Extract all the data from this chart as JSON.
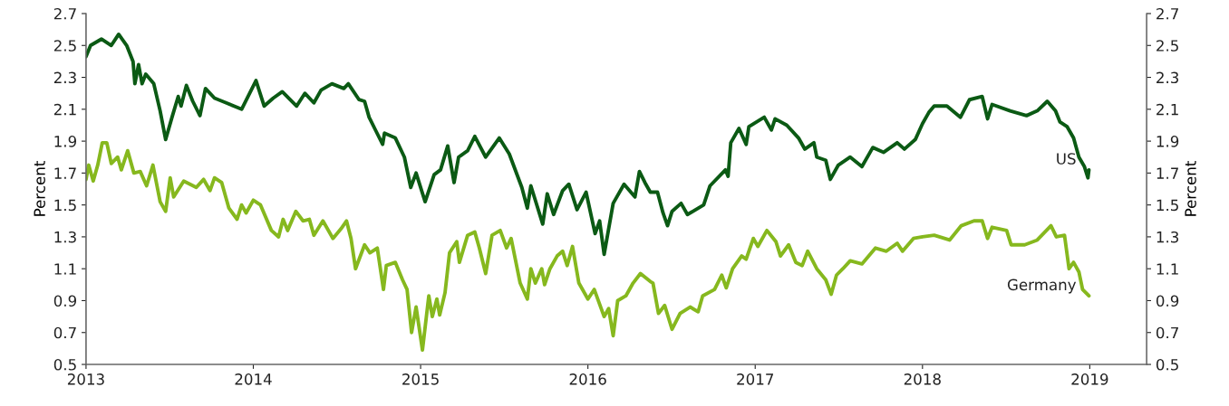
{
  "chart_data": {
    "type": "line",
    "ylabel": "Percent",
    "y2label": "Percent",
    "xlim": [
      2013,
      2019.34
    ],
    "xticks": [
      2013,
      2014,
      2015,
      2016,
      2017,
      2018,
      2019
    ],
    "ylim": [
      0.5,
      2.7
    ],
    "yticks": [
      0.5,
      0.7,
      0.9,
      1.1,
      1.3,
      1.5,
      1.7,
      1.9,
      2.1,
      2.3,
      2.5,
      2.7
    ],
    "y2lim": [
      0.5,
      2.7
    ],
    "y2ticks": [
      0.5,
      0.7,
      0.9,
      1.1,
      1.3,
      1.5,
      1.7,
      1.9,
      2.1,
      2.3,
      2.5,
      2.7
    ],
    "grid": false,
    "line_style": "solid",
    "marker": "none",
    "series": [
      {
        "name": "US",
        "color": "#0b5a14",
        "x": [
          2013.0,
          2013.027,
          2013.092,
          2013.151,
          2013.195,
          2013.243,
          2013.281,
          2013.292,
          2013.314,
          2013.335,
          2013.357,
          2013.405,
          2013.443,
          2013.476,
          2013.514,
          2013.551,
          2013.568,
          2013.6,
          2013.638,
          2013.681,
          2013.714,
          2013.768,
          2013.838,
          2013.93,
          2014.016,
          2014.065,
          2014.119,
          2014.173,
          2014.259,
          2014.308,
          2014.362,
          2014.405,
          2014.47,
          2014.541,
          2014.568,
          2014.632,
          2014.665,
          2014.692,
          2014.73,
          2014.773,
          2014.784,
          2014.849,
          2014.903,
          2014.941,
          2014.973,
          2015.027,
          2015.081,
          2015.119,
          2015.162,
          2015.2,
          2015.227,
          2015.281,
          2015.324,
          2015.389,
          2015.47,
          2015.53,
          2015.605,
          2015.638,
          2015.659,
          2015.73,
          2015.757,
          2015.795,
          2015.849,
          2015.886,
          2015.935,
          2015.989,
          2016.043,
          2016.07,
          2016.097,
          2016.151,
          2016.216,
          2016.281,
          2016.308,
          2016.341,
          2016.373,
          2016.416,
          2016.449,
          2016.476,
          2016.503,
          2016.557,
          2016.595,
          2016.692,
          2016.73,
          2016.822,
          2016.838,
          2016.854,
          2016.903,
          2016.946,
          2016.962,
          2017.054,
          2017.097,
          2017.119,
          2017.189,
          2017.259,
          2017.297,
          2017.351,
          2017.368,
          2017.422,
          2017.449,
          2017.497,
          2017.568,
          2017.638,
          2017.703,
          2017.768,
          2017.849,
          2017.892,
          2017.957,
          2018.0,
          2018.038,
          2018.07,
          2018.146,
          2018.227,
          2018.281,
          2018.357,
          2018.389,
          2018.416,
          2018.524,
          2018.622,
          2018.686,
          2018.746,
          2018.795,
          2018.822,
          2018.865,
          2018.903,
          2018.935,
          2018.968,
          2018.989,
          2018.995
        ],
        "values": [
          2.43,
          2.5,
          2.54,
          2.5,
          2.57,
          2.5,
          2.4,
          2.26,
          2.38,
          2.26,
          2.32,
          2.26,
          2.09,
          1.91,
          2.05,
          2.18,
          2.12,
          2.25,
          2.15,
          2.06,
          2.23,
          2.17,
          2.14,
          2.1,
          2.28,
          2.12,
          2.17,
          2.21,
          2.12,
          2.2,
          2.14,
          2.22,
          2.26,
          2.23,
          2.26,
          2.16,
          2.15,
          2.05,
          1.97,
          1.88,
          1.95,
          1.92,
          1.8,
          1.61,
          1.7,
          1.52,
          1.69,
          1.72,
          1.87,
          1.64,
          1.8,
          1.84,
          1.93,
          1.8,
          1.92,
          1.82,
          1.61,
          1.48,
          1.62,
          1.38,
          1.57,
          1.44,
          1.59,
          1.63,
          1.47,
          1.58,
          1.32,
          1.4,
          1.19,
          1.51,
          1.63,
          1.55,
          1.71,
          1.64,
          1.58,
          1.58,
          1.45,
          1.37,
          1.46,
          1.51,
          1.44,
          1.5,
          1.62,
          1.72,
          1.68,
          1.89,
          1.98,
          1.88,
          1.99,
          2.05,
          1.97,
          2.04,
          2.0,
          1.92,
          1.85,
          1.89,
          1.8,
          1.78,
          1.66,
          1.75,
          1.8,
          1.74,
          1.86,
          1.83,
          1.89,
          1.85,
          1.91,
          2.01,
          2.08,
          2.12,
          2.12,
          2.05,
          2.16,
          2.18,
          2.04,
          2.13,
          2.09,
          2.06,
          2.09,
          2.15,
          2.09,
          2.02,
          1.99,
          1.92,
          1.8,
          1.74,
          1.67,
          1.72
        ]
      },
      {
        "name": "Germany",
        "color": "#86b81e",
        "x": [
          2013.0,
          2013.016,
          2013.043,
          2013.07,
          2013.097,
          2013.124,
          2013.151,
          2013.189,
          2013.211,
          2013.249,
          2013.286,
          2013.324,
          2013.362,
          2013.4,
          2013.443,
          2013.476,
          2013.503,
          2013.524,
          2013.584,
          2013.659,
          2013.703,
          2013.741,
          2013.768,
          2013.811,
          2013.854,
          2013.903,
          2013.93,
          2013.957,
          2014.0,
          2014.043,
          2014.108,
          2014.151,
          2014.178,
          2014.205,
          2014.254,
          2014.297,
          2014.335,
          2014.362,
          2014.416,
          2014.476,
          2014.524,
          2014.557,
          2014.584,
          2014.611,
          2014.665,
          2014.697,
          2014.741,
          2014.778,
          2014.795,
          2014.849,
          2014.892,
          2014.919,
          2014.946,
          2014.973,
          2015.011,
          2015.049,
          2015.07,
          2015.097,
          2015.114,
          2015.146,
          2015.173,
          2015.216,
          2015.232,
          2015.281,
          2015.324,
          2015.351,
          2015.389,
          2015.427,
          2015.476,
          2015.514,
          2015.541,
          2015.595,
          2015.638,
          2015.659,
          2015.686,
          2015.724,
          2015.741,
          2015.773,
          2015.816,
          2015.849,
          2015.876,
          2015.908,
          2015.946,
          2016.0,
          2016.038,
          2016.097,
          2016.124,
          2016.151,
          2016.178,
          2016.227,
          2016.27,
          2016.314,
          2016.373,
          2016.389,
          2016.422,
          2016.459,
          2016.503,
          2016.551,
          2016.611,
          2016.659,
          2016.686,
          2016.757,
          2016.8,
          2016.827,
          2016.865,
          2016.919,
          2016.946,
          2016.989,
          2017.016,
          2017.07,
          2017.124,
          2017.151,
          2017.2,
          2017.243,
          2017.281,
          2017.314,
          2017.368,
          2017.422,
          2017.454,
          2017.486,
          2017.524,
          2017.568,
          2017.638,
          2017.719,
          2017.784,
          2017.849,
          2017.881,
          2017.946,
          2018.0,
          2018.07,
          2018.162,
          2018.232,
          2018.308,
          2018.357,
          2018.389,
          2018.416,
          2018.503,
          2018.53,
          2018.611,
          2018.686,
          2018.768,
          2018.8,
          2018.849,
          2018.876,
          2018.903,
          2018.935,
          2018.957,
          2018.995
        ],
        "values": [
          1.66,
          1.75,
          1.65,
          1.75,
          1.89,
          1.89,
          1.76,
          1.8,
          1.72,
          1.84,
          1.7,
          1.71,
          1.62,
          1.75,
          1.52,
          1.46,
          1.67,
          1.55,
          1.65,
          1.61,
          1.66,
          1.59,
          1.67,
          1.64,
          1.48,
          1.41,
          1.5,
          1.45,
          1.53,
          1.5,
          1.34,
          1.3,
          1.41,
          1.34,
          1.46,
          1.4,
          1.41,
          1.31,
          1.4,
          1.29,
          1.35,
          1.4,
          1.29,
          1.1,
          1.25,
          1.2,
          1.23,
          0.97,
          1.12,
          1.14,
          1.03,
          0.97,
          0.7,
          0.86,
          0.59,
          0.93,
          0.8,
          0.91,
          0.81,
          0.95,
          1.2,
          1.27,
          1.14,
          1.31,
          1.33,
          1.23,
          1.07,
          1.31,
          1.34,
          1.23,
          1.29,
          1.01,
          0.91,
          1.1,
          1.01,
          1.1,
          1.0,
          1.1,
          1.18,
          1.21,
          1.12,
          1.24,
          1.01,
          0.91,
          0.97,
          0.8,
          0.85,
          0.68,
          0.9,
          0.93,
          1.01,
          1.07,
          1.02,
          1.01,
          0.82,
          0.87,
          0.72,
          0.82,
          0.86,
          0.83,
          0.93,
          0.97,
          1.06,
          0.98,
          1.1,
          1.18,
          1.16,
          1.29,
          1.24,
          1.34,
          1.27,
          1.18,
          1.25,
          1.14,
          1.12,
          1.21,
          1.1,
          1.03,
          0.94,
          1.06,
          1.1,
          1.15,
          1.13,
          1.23,
          1.21,
          1.26,
          1.21,
          1.29,
          1.3,
          1.31,
          1.28,
          1.37,
          1.4,
          1.4,
          1.29,
          1.36,
          1.34,
          1.25,
          1.25,
          1.28,
          1.37,
          1.3,
          1.31,
          1.1,
          1.14,
          1.08,
          0.97,
          0.93
        ]
      }
    ]
  }
}
